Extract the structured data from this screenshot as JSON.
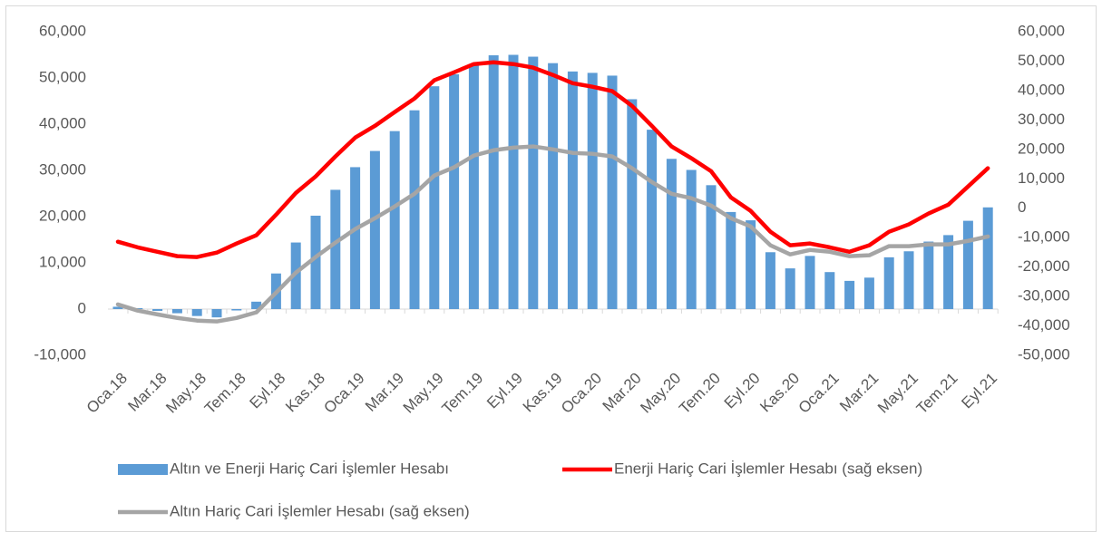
{
  "chart_data": {
    "type": "bar-line",
    "categories": [
      "Oca.18",
      null,
      "Mar.18",
      null,
      "May.18",
      null,
      "Tem.18",
      null,
      "Eyl.18",
      null,
      "Kas.18",
      null,
      "Oca.19",
      null,
      "Mar.19",
      null,
      "May.19",
      null,
      "Tem.19",
      null,
      "Eyl.19",
      null,
      "Kas.19",
      null,
      "Oca.20",
      null,
      "Mar.20",
      null,
      "May.20",
      null,
      "Tem.20",
      null,
      "Eyl.20",
      null,
      "Kas.20",
      null,
      "Oca.21",
      null,
      "Mar.21",
      null,
      "May.21",
      null,
      "Tem.21",
      null,
      "Eyl.21"
    ],
    "series": [
      {
        "name": "Altın ve Enerji Hariç Cari İşlemler Hesabı",
        "type": "bar",
        "color": "#5b9bd5",
        "axis": "y",
        "values": [
          500,
          200,
          -400,
          -900,
          -1500,
          -1800,
          -300,
          1600,
          7700,
          14400,
          20200,
          25800,
          30700,
          34200,
          38500,
          43000,
          48200,
          50800,
          53000,
          54900,
          55000,
          54600,
          53200,
          51400,
          51100,
          50500,
          45400,
          38800,
          32500,
          30100,
          26800,
          21000,
          19200,
          12300,
          8800,
          11500,
          8000,
          6100,
          6800,
          11200,
          12500,
          14600,
          16000,
          19100,
          22000
        ]
      },
      {
        "name": "Enerji Hariç Cari İşlemler Hesabı (sağ eksen)",
        "type": "line",
        "color": "#ff0000",
        "axis": "y2",
        "values": [
          -11400,
          -13300,
          -14800,
          -16300,
          -16600,
          -15100,
          -12000,
          -9200,
          -2200,
          5200,
          10800,
          17600,
          24000,
          28000,
          32700,
          37300,
          43500,
          46200,
          49000,
          49600,
          49000,
          47800,
          45300,
          42500,
          41300,
          39800,
          34800,
          28000,
          21000,
          17000,
          12600,
          3700,
          -900,
          -8000,
          -12600,
          -12000,
          -13300,
          -14800,
          -12600,
          -8000,
          -5500,
          -1800,
          1200,
          7400,
          13600
        ]
      },
      {
        "name": "Altın Hariç Cari İşlemler Hesabı (sağ eksen)",
        "type": "line",
        "color": "#a5a5a5",
        "axis": "y2",
        "values": [
          -32700,
          -34800,
          -36100,
          -37300,
          -38200,
          -38500,
          -37300,
          -35400,
          -28700,
          -21900,
          -16600,
          -11700,
          -7100,
          -3400,
          600,
          4900,
          11100,
          13900,
          17900,
          19700,
          20600,
          21000,
          20000,
          18800,
          18500,
          17600,
          13600,
          8900,
          4900,
          3400,
          900,
          -3400,
          -6200,
          -12600,
          -15700,
          -14200,
          -14800,
          -16300,
          -16000,
          -12900,
          -12900,
          -12300,
          -12300,
          -11100,
          -9600
        ]
      }
    ],
    "ylim": [
      -10000,
      60000
    ],
    "yticks": [
      {
        "value": -10000,
        "label": "-10,000"
      },
      0,
      {
        "value": 10000,
        "label": "10,000"
      },
      {
        "value": 20000,
        "label": "20,000"
      },
      {
        "value": 30000,
        "label": "30,000"
      },
      {
        "value": 40000,
        "label": "40,000"
      },
      {
        "value": 50000,
        "label": "50,000"
      },
      {
        "value": 60000,
        "label": "60,000"
      }
    ],
    "y2lim": [
      -50000,
      60000
    ],
    "y2ticks": [
      {
        "value": -50000,
        "label": "-50,000"
      },
      {
        "value": -40000,
        "label": "-40,000"
      },
      {
        "value": -30000,
        "label": "-30,000"
      },
      {
        "value": -20000,
        "label": "-20,000"
      },
      {
        "value": -10000,
        "label": "-10,000"
      },
      0,
      {
        "value": 10000,
        "label": "10,000"
      },
      {
        "value": 20000,
        "label": "20,000"
      },
      {
        "value": 30000,
        "label": "30,000"
      },
      {
        "value": 40000,
        "label": "40,000"
      },
      {
        "value": 50000,
        "label": "50,000"
      },
      {
        "value": 60000,
        "label": "60,000"
      }
    ],
    "grid": false,
    "legend": "bottom"
  }
}
